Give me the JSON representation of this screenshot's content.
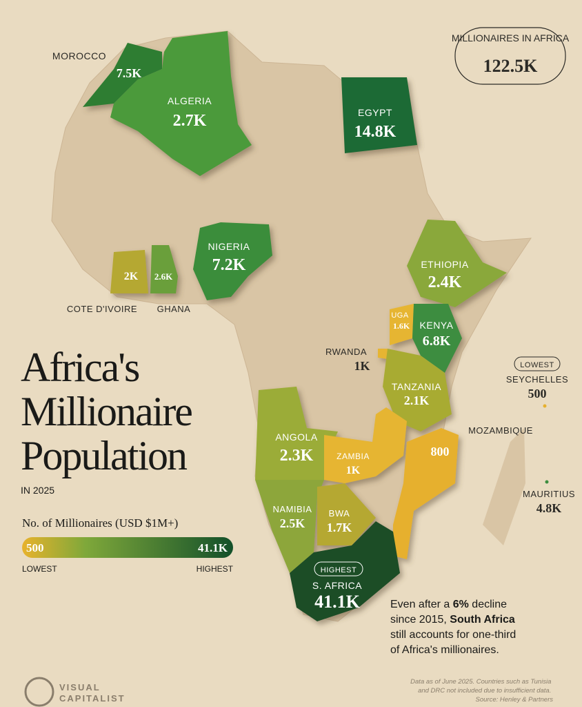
{
  "title": {
    "lines": [
      "Africa's",
      "Millionaire",
      "Population"
    ],
    "subtitle": "IN 2025"
  },
  "total": {
    "label": "MILLIONAIRES IN AFRICA",
    "value": "122.5K"
  },
  "legend": {
    "title": "No. of Millionaires (USD $1M+)",
    "min": "500",
    "max": "41.1K",
    "min_label": "LOWEST",
    "max_label": "HIGHEST"
  },
  "countries": [
    {
      "name": "MOROCCO",
      "value": "7.5K"
    },
    {
      "name": "ALGERIA",
      "value": "2.7K"
    },
    {
      "name": "EGYPT",
      "value": "14.8K"
    },
    {
      "name": "NIGERIA",
      "value": "7.2K"
    },
    {
      "name": "COTE D'IVOIRE",
      "value": "2K"
    },
    {
      "name": "GHANA",
      "value": "2.6K"
    },
    {
      "name": "ETHIOPIA",
      "value": "2.4K"
    },
    {
      "name": "UGA",
      "value": "1.6K"
    },
    {
      "name": "KENYA",
      "value": "6.8K"
    },
    {
      "name": "RWANDA",
      "value": "1K"
    },
    {
      "name": "TANZANIA",
      "value": "2.1K"
    },
    {
      "name": "SEYCHELLES",
      "value": "500",
      "badge": "LOWEST"
    },
    {
      "name": "ANGOLA",
      "value": "2.3K"
    },
    {
      "name": "ZAMBIA",
      "value": "1K"
    },
    {
      "name": "MOZAMBIQUE",
      "value": "800"
    },
    {
      "name": "MAURITIUS",
      "value": "4.8K"
    },
    {
      "name": "NAMIBIA",
      "value": "2.5K"
    },
    {
      "name": "BWA",
      "value": "1.7K"
    },
    {
      "name": "S. AFRICA",
      "value": "41.1K",
      "badge": "HIGHEST"
    }
  ],
  "annotation": [
    "Even after a ",
    "6%",
    " decline",
    "since 2015, ",
    "South Africa",
    "still accounts for one-third",
    "of Africa's millionaires."
  ],
  "footnote": [
    "Data as of June 2025. Countries such as Tunisia",
    "and DRC not included due to insufficient data.",
    "Source: Henley & Partners"
  ],
  "logo": [
    "VISUAL",
    "CAPITALIST"
  ]
}
